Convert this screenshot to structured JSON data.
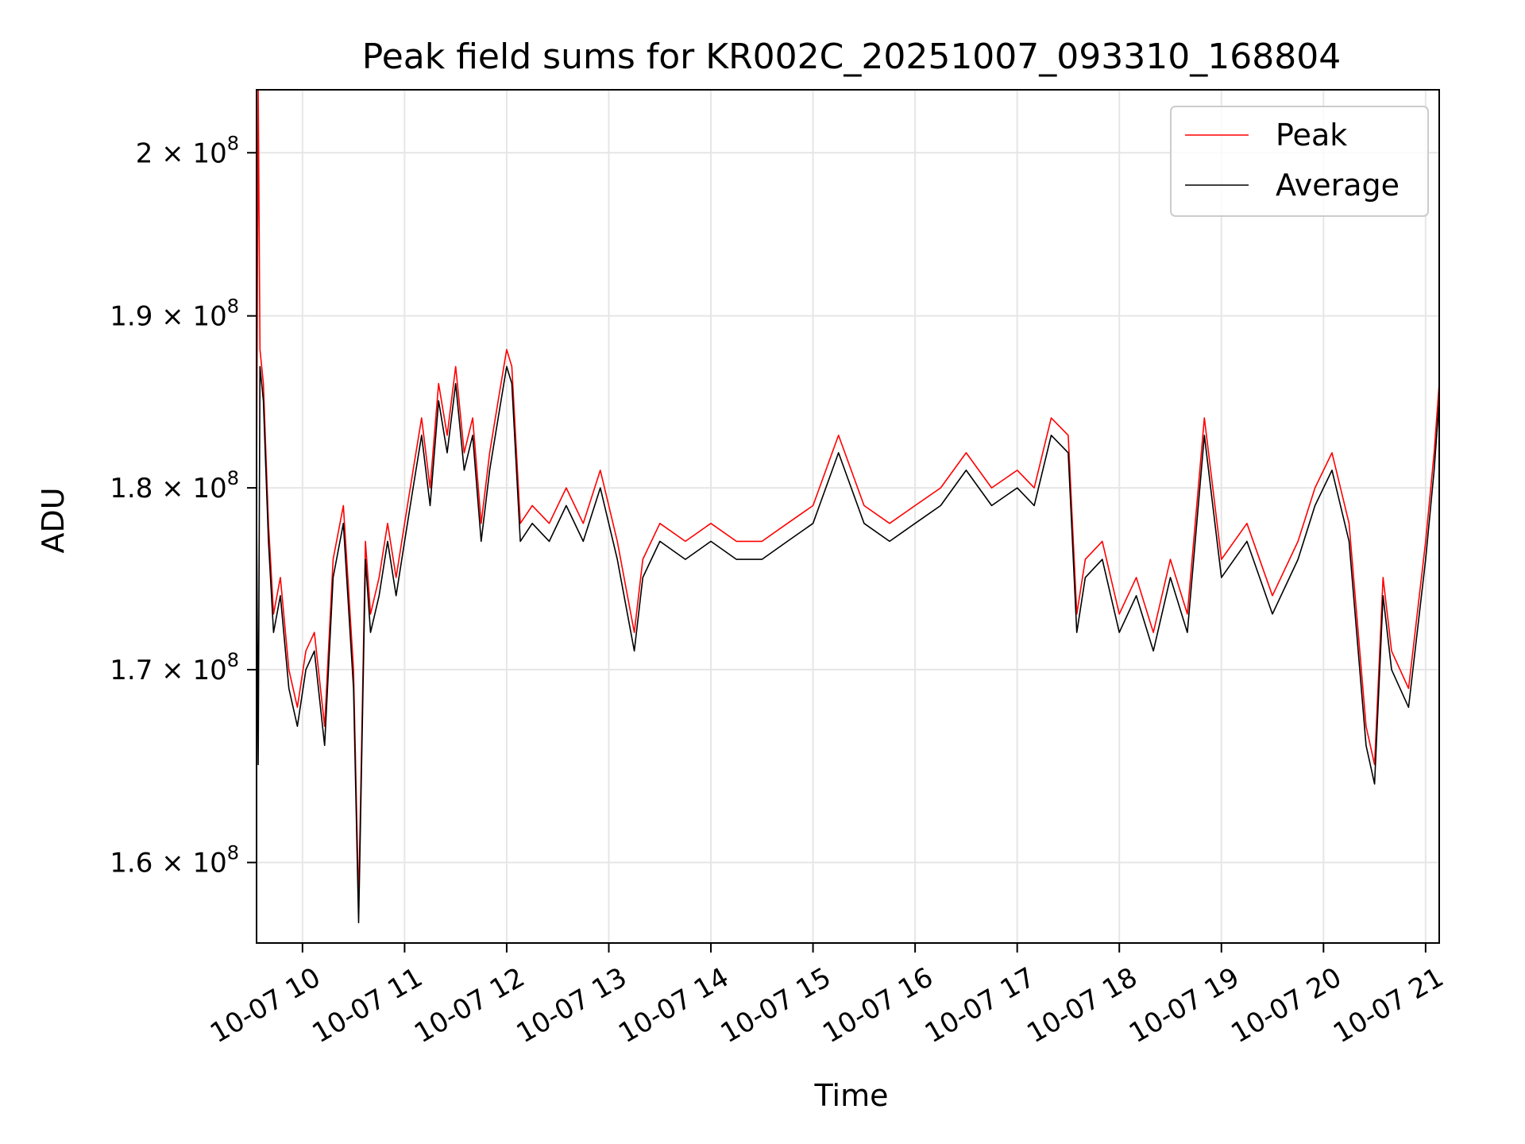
{
  "chart_data": {
    "type": "line",
    "title": "Peak field sums for KR002C_20251007_093310_168804",
    "xlabel": "Time",
    "ylabel": "ADU",
    "y_scale": "log",
    "xlim": [
      "2025-10-07 09:33",
      "2025-10-07 21:08"
    ],
    "ylim": [
      156000000,
      204000000
    ],
    "x_ticks": [
      {
        "value": "2025-10-07 10:00",
        "label": "10-07 10"
      },
      {
        "value": "2025-10-07 11:00",
        "label": "10-07 11"
      },
      {
        "value": "2025-10-07 12:00",
        "label": "10-07 12"
      },
      {
        "value": "2025-10-07 13:00",
        "label": "10-07 13"
      },
      {
        "value": "2025-10-07 14:00",
        "label": "10-07 14"
      },
      {
        "value": "2025-10-07 15:00",
        "label": "10-07 15"
      },
      {
        "value": "2025-10-07 16:00",
        "label": "10-07 16"
      },
      {
        "value": "2025-10-07 17:00",
        "label": "10-07 17"
      },
      {
        "value": "2025-10-07 18:00",
        "label": "10-07 18"
      },
      {
        "value": "2025-10-07 19:00",
        "label": "10-07 19"
      },
      {
        "value": "2025-10-07 20:00",
        "label": "10-07 20"
      },
      {
        "value": "2025-10-07 21:00",
        "label": "10-07 21"
      }
    ],
    "y_ticks": [
      {
        "value": 160000000,
        "mantissa": "1.6",
        "exponent": "8"
      },
      {
        "value": 170000000,
        "mantissa": "1.7",
        "exponent": "8"
      },
      {
        "value": 180000000,
        "mantissa": "1.8",
        "exponent": "8"
      },
      {
        "value": 190000000,
        "mantissa": "1.9",
        "exponent": "8"
      },
      {
        "value": 200000000,
        "mantissa": "2",
        "exponent": "8"
      }
    ],
    "grid": true,
    "legend_position": "top-right",
    "series": [
      {
        "name": "Peak",
        "color": "#ff0000",
        "x": [
          "2025-10-07 09:33",
          "2025-10-07 09:34",
          "2025-10-07 09:35",
          "2025-10-07 09:37",
          "2025-10-07 09:40",
          "2025-10-07 09:43",
          "2025-10-07 09:47",
          "2025-10-07 09:52",
          "2025-10-07 09:57",
          "2025-10-07 10:02",
          "2025-10-07 10:07",
          "2025-10-07 10:13",
          "2025-10-07 10:18",
          "2025-10-07 10:24",
          "2025-10-07 10:30",
          "2025-10-07 10:33",
          "2025-10-07 10:37",
          "2025-10-07 10:40",
          "2025-10-07 10:45",
          "2025-10-07 10:50",
          "2025-10-07 10:55",
          "2025-10-07 11:00",
          "2025-10-07 11:05",
          "2025-10-07 11:10",
          "2025-10-07 11:15",
          "2025-10-07 11:20",
          "2025-10-07 11:25",
          "2025-10-07 11:30",
          "2025-10-07 11:35",
          "2025-10-07 11:40",
          "2025-10-07 11:45",
          "2025-10-07 11:50",
          "2025-10-07 11:55",
          "2025-10-07 12:00",
          "2025-10-07 12:03",
          "2025-10-07 12:08",
          "2025-10-07 12:15",
          "2025-10-07 12:25",
          "2025-10-07 12:35",
          "2025-10-07 12:45",
          "2025-10-07 12:55",
          "2025-10-07 13:05",
          "2025-10-07 13:15",
          "2025-10-07 13:20",
          "2025-10-07 13:30",
          "2025-10-07 13:45",
          "2025-10-07 14:00",
          "2025-10-07 14:15",
          "2025-10-07 14:30",
          "2025-10-07 14:45",
          "2025-10-07 15:00",
          "2025-10-07 15:15",
          "2025-10-07 15:30",
          "2025-10-07 15:45",
          "2025-10-07 16:00",
          "2025-10-07 16:15",
          "2025-10-07 16:30",
          "2025-10-07 16:45",
          "2025-10-07 17:00",
          "2025-10-07 17:10",
          "2025-10-07 17:20",
          "2025-10-07 17:30",
          "2025-10-07 17:35",
          "2025-10-07 17:40",
          "2025-10-07 17:50",
          "2025-10-07 18:00",
          "2025-10-07 18:10",
          "2025-10-07 18:20",
          "2025-10-07 18:30",
          "2025-10-07 18:40",
          "2025-10-07 18:50",
          "2025-10-07 19:00",
          "2025-10-07 19:15",
          "2025-10-07 19:30",
          "2025-10-07 19:45",
          "2025-10-07 19:55",
          "2025-10-07 20:05",
          "2025-10-07 20:15",
          "2025-10-07 20:25",
          "2025-10-07 20:30",
          "2025-10-07 20:35",
          "2025-10-07 20:40",
          "2025-10-07 20:50",
          "2025-10-07 21:00",
          "2025-10-07 21:05",
          "2025-10-07 21:08"
        ],
        "values": [
          180000000,
          204000000,
          188000000,
          186000000,
          178000000,
          173000000,
          175000000,
          170000000,
          168000000,
          171000000,
          172000000,
          167000000,
          176000000,
          179000000,
          170000000,
          158000000,
          177000000,
          173000000,
          175000000,
          178000000,
          175000000,
          178000000,
          181000000,
          184000000,
          180000000,
          186000000,
          183000000,
          187000000,
          182000000,
          184000000,
          178000000,
          182000000,
          185000000,
          188000000,
          187000000,
          178000000,
          179000000,
          178000000,
          180000000,
          178000000,
          181000000,
          177000000,
          172000000,
          176000000,
          178000000,
          177000000,
          178000000,
          177000000,
          177000000,
          178000000,
          179000000,
          183000000,
          179000000,
          178000000,
          179000000,
          180000000,
          182000000,
          180000000,
          181000000,
          180000000,
          184000000,
          183000000,
          173000000,
          176000000,
          177000000,
          173000000,
          175000000,
          172000000,
          176000000,
          173000000,
          184000000,
          176000000,
          178000000,
          174000000,
          177000000,
          180000000,
          182000000,
          178000000,
          167000000,
          165000000,
          175000000,
          171000000,
          169000000,
          177000000,
          182000000,
          186000000
        ]
      },
      {
        "name": "Average",
        "color": "#000000",
        "x": [
          "2025-10-07 09:33",
          "2025-10-07 09:34",
          "2025-10-07 09:35",
          "2025-10-07 09:37",
          "2025-10-07 09:40",
          "2025-10-07 09:43",
          "2025-10-07 09:47",
          "2025-10-07 09:52",
          "2025-10-07 09:57",
          "2025-10-07 10:02",
          "2025-10-07 10:07",
          "2025-10-07 10:13",
          "2025-10-07 10:18",
          "2025-10-07 10:24",
          "2025-10-07 10:30",
          "2025-10-07 10:33",
          "2025-10-07 10:37",
          "2025-10-07 10:40",
          "2025-10-07 10:45",
          "2025-10-07 10:50",
          "2025-10-07 10:55",
          "2025-10-07 11:00",
          "2025-10-07 11:05",
          "2025-10-07 11:10",
          "2025-10-07 11:15",
          "2025-10-07 11:20",
          "2025-10-07 11:25",
          "2025-10-07 11:30",
          "2025-10-07 11:35",
          "2025-10-07 11:40",
          "2025-10-07 11:45",
          "2025-10-07 11:50",
          "2025-10-07 11:55",
          "2025-10-07 12:00",
          "2025-10-07 12:03",
          "2025-10-07 12:08",
          "2025-10-07 12:15",
          "2025-10-07 12:25",
          "2025-10-07 12:35",
          "2025-10-07 12:45",
          "2025-10-07 12:55",
          "2025-10-07 13:05",
          "2025-10-07 13:15",
          "2025-10-07 13:20",
          "2025-10-07 13:30",
          "2025-10-07 13:45",
          "2025-10-07 14:00",
          "2025-10-07 14:15",
          "2025-10-07 14:30",
          "2025-10-07 14:45",
          "2025-10-07 15:00",
          "2025-10-07 15:15",
          "2025-10-07 15:30",
          "2025-10-07 15:45",
          "2025-10-07 16:00",
          "2025-10-07 16:15",
          "2025-10-07 16:30",
          "2025-10-07 16:45",
          "2025-10-07 17:00",
          "2025-10-07 17:10",
          "2025-10-07 17:20",
          "2025-10-07 17:30",
          "2025-10-07 17:35",
          "2025-10-07 17:40",
          "2025-10-07 17:50",
          "2025-10-07 18:00",
          "2025-10-07 18:10",
          "2025-10-07 18:20",
          "2025-10-07 18:30",
          "2025-10-07 18:40",
          "2025-10-07 18:50",
          "2025-10-07 19:00",
          "2025-10-07 19:15",
          "2025-10-07 19:30",
          "2025-10-07 19:45",
          "2025-10-07 19:55",
          "2025-10-07 20:05",
          "2025-10-07 20:15",
          "2025-10-07 20:25",
          "2025-10-07 20:30",
          "2025-10-07 20:35",
          "2025-10-07 20:40",
          "2025-10-07 20:50",
          "2025-10-07 21:00",
          "2025-10-07 21:05",
          "2025-10-07 21:08"
        ],
        "values": [
          179000000,
          165000000,
          187000000,
          185000000,
          177000000,
          172000000,
          174000000,
          169000000,
          167000000,
          170000000,
          171000000,
          166000000,
          175000000,
          178000000,
          169000000,
          157000000,
          176000000,
          172000000,
          174000000,
          177000000,
          174000000,
          177000000,
          180000000,
          183000000,
          179000000,
          185000000,
          182000000,
          186000000,
          181000000,
          183000000,
          177000000,
          181000000,
          184000000,
          187000000,
          186000000,
          177000000,
          178000000,
          177000000,
          179000000,
          177000000,
          180000000,
          176000000,
          171000000,
          175000000,
          177000000,
          176000000,
          177000000,
          176000000,
          176000000,
          177000000,
          178000000,
          182000000,
          178000000,
          177000000,
          178000000,
          179000000,
          181000000,
          179000000,
          180000000,
          179000000,
          183000000,
          182000000,
          172000000,
          175000000,
          176000000,
          172000000,
          174000000,
          171000000,
          175000000,
          172000000,
          183000000,
          175000000,
          177000000,
          173000000,
          176000000,
          179000000,
          181000000,
          177000000,
          166000000,
          164000000,
          174000000,
          170000000,
          168000000,
          176000000,
          181000000,
          185000000
        ]
      }
    ]
  }
}
